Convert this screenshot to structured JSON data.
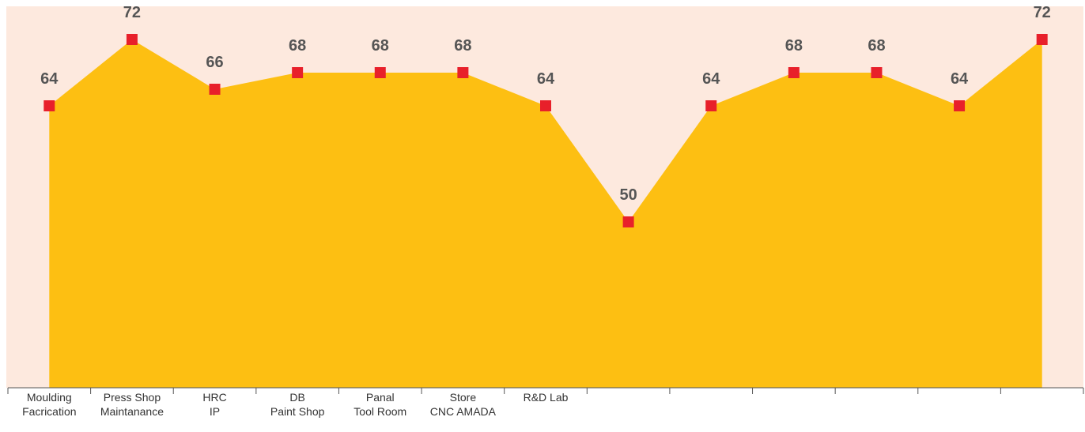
{
  "chart_data": {
    "type": "area",
    "categories": [
      [
        "Moulding",
        "Facrication"
      ],
      [
        "Press Shop",
        "Maintanance"
      ],
      [
        "HRC",
        "IP"
      ],
      [
        "DB",
        "Paint Shop"
      ],
      [
        "Panal",
        "Tool Room"
      ],
      [
        "Store",
        "CNC AMADA"
      ],
      [
        "R&D Lab"
      ],
      null,
      null,
      null,
      null,
      null,
      null
    ],
    "values": [
      64,
      72,
      66,
      68,
      68,
      68,
      64,
      50,
      64,
      68,
      68,
      64,
      72
    ],
    "color": "#fdbf12",
    "marker_color": "#e8202a",
    "background": "#fde9de",
    "ylim": [
      30,
      76
    ]
  }
}
